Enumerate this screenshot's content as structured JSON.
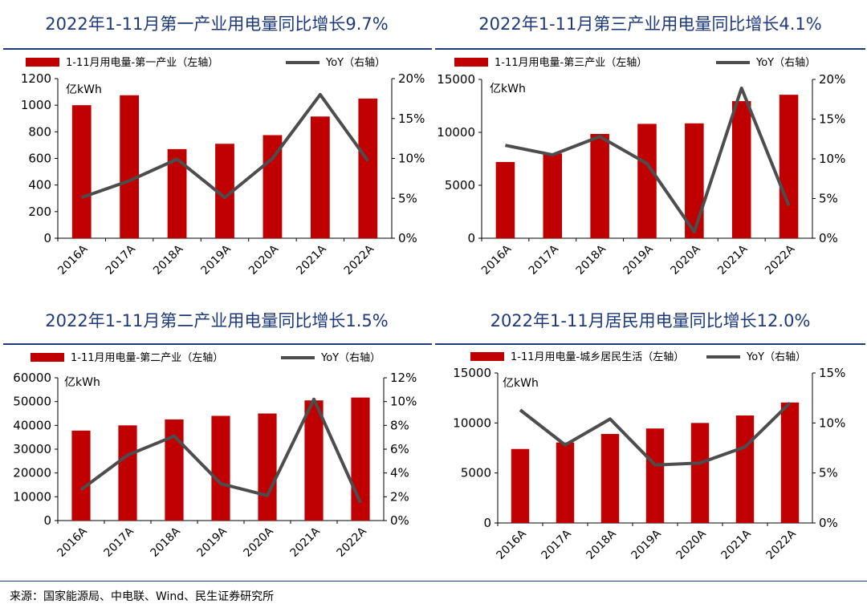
{
  "colors": {
    "bar": "#c00000",
    "line": "#4d4d4d",
    "title": "#1f3a7a",
    "rule": "#1f3a7a"
  },
  "source": "来源：国家能源局、中电联、Wind、民生证券研究所",
  "chart_data": [
    {
      "type": "bar",
      "title": "2022年1-11月第一产业用电量同比增长9.7%",
      "unit_label": "亿kWh",
      "categories": [
        "2016A",
        "2017A",
        "2018A",
        "2019A",
        "2020A",
        "2021A",
        "2022A"
      ],
      "series": [
        {
          "name": "1-11月用电量-第一产业（左轴）",
          "type": "bar",
          "axis": "left",
          "values": [
            1000,
            1075,
            670,
            710,
            775,
            915,
            1050
          ]
        },
        {
          "name": "YoY（右轴）",
          "type": "line",
          "axis": "right",
          "values": [
            5.1,
            7.2,
            9.9,
            5.1,
            10.0,
            18.0,
            9.7
          ]
        }
      ],
      "left_axis": {
        "ylim": [
          0,
          1200
        ],
        "ticks": [
          "0",
          "200",
          "400",
          "600",
          "800",
          "1000",
          "1200"
        ]
      },
      "right_axis": {
        "ylim": [
          0,
          20
        ],
        "ticks": [
          "0%",
          "5%",
          "10%",
          "15%",
          "20%"
        ]
      },
      "legend": "top"
    },
    {
      "type": "bar",
      "title": "2022年1-11月第三产业用电量同比增长4.1%",
      "unit_label": "亿kWh",
      "categories": [
        "2016A",
        "2017A",
        "2018A",
        "2019A",
        "2020A",
        "2021A",
        "2022A"
      ],
      "series": [
        {
          "name": "1-11月用电量-第三产业（左轴）",
          "type": "bar",
          "axis": "left",
          "values": [
            7200,
            8000,
            9850,
            10800,
            10850,
            12950,
            13550
          ]
        },
        {
          "name": "YoY（右轴）",
          "type": "line",
          "axis": "right",
          "values": [
            11.7,
            10.5,
            12.8,
            9.4,
            0.8,
            18.9,
            4.1
          ]
        }
      ],
      "left_axis": {
        "ylim": [
          0,
          15000
        ],
        "ticks": [
          "0",
          "5000",
          "10000",
          "15000"
        ]
      },
      "right_axis": {
        "ylim": [
          0,
          20
        ],
        "ticks": [
          "0%",
          "5%",
          "10%",
          "15%",
          "20%"
        ]
      },
      "legend": "top"
    },
    {
      "type": "bar",
      "title": "2022年1-11月第二产业用电量同比增长1.5%",
      "unit_label": "亿kWh",
      "categories": [
        "2016A",
        "2017A",
        "2018A",
        "2019A",
        "2020A",
        "2021A",
        "2022A"
      ],
      "series": [
        {
          "name": "1-11月用电量-第二产业（左轴）",
          "type": "bar",
          "axis": "left",
          "values": [
            37800,
            40000,
            42500,
            44000,
            45000,
            50500,
            51700
          ]
        },
        {
          "name": "YoY（右轴）",
          "type": "line",
          "axis": "right",
          "values": [
            2.6,
            5.5,
            7.1,
            3.1,
            2.1,
            10.2,
            1.5
          ]
        }
      ],
      "left_axis": {
        "ylim": [
          0,
          60000
        ],
        "ticks": [
          "0",
          "10000",
          "20000",
          "30000",
          "40000",
          "50000",
          "60000"
        ]
      },
      "right_axis": {
        "ylim": [
          0,
          12
        ],
        "ticks": [
          "0%",
          "2%",
          "4%",
          "6%",
          "8%",
          "10%",
          "12%"
        ]
      },
      "legend": "top"
    },
    {
      "type": "bar",
      "title": "2022年1-11月居民用电量同比增长12.0%",
      "unit_label": "亿kWh",
      "categories": [
        "2016A",
        "2017A",
        "2018A",
        "2019A",
        "2020A",
        "2021A",
        "2022A"
      ],
      "series": [
        {
          "name": "1-11月用电量-城乡居民生活（左轴）",
          "type": "bar",
          "axis": "left",
          "values": [
            7400,
            8050,
            8900,
            9450,
            10000,
            10750,
            12050
          ]
        },
        {
          "name": "YoY（右轴）",
          "type": "line",
          "axis": "right",
          "values": [
            11.3,
            7.8,
            10.4,
            5.8,
            6.0,
            7.6,
            12.0
          ]
        }
      ],
      "left_axis": {
        "ylim": [
          0,
          15000
        ],
        "ticks": [
          "0",
          "5000",
          "10000",
          "15000"
        ]
      },
      "right_axis": {
        "ylim": [
          0,
          15
        ],
        "ticks": [
          "0%",
          "5%",
          "10%",
          "15%"
        ]
      },
      "legend": "top"
    }
  ]
}
